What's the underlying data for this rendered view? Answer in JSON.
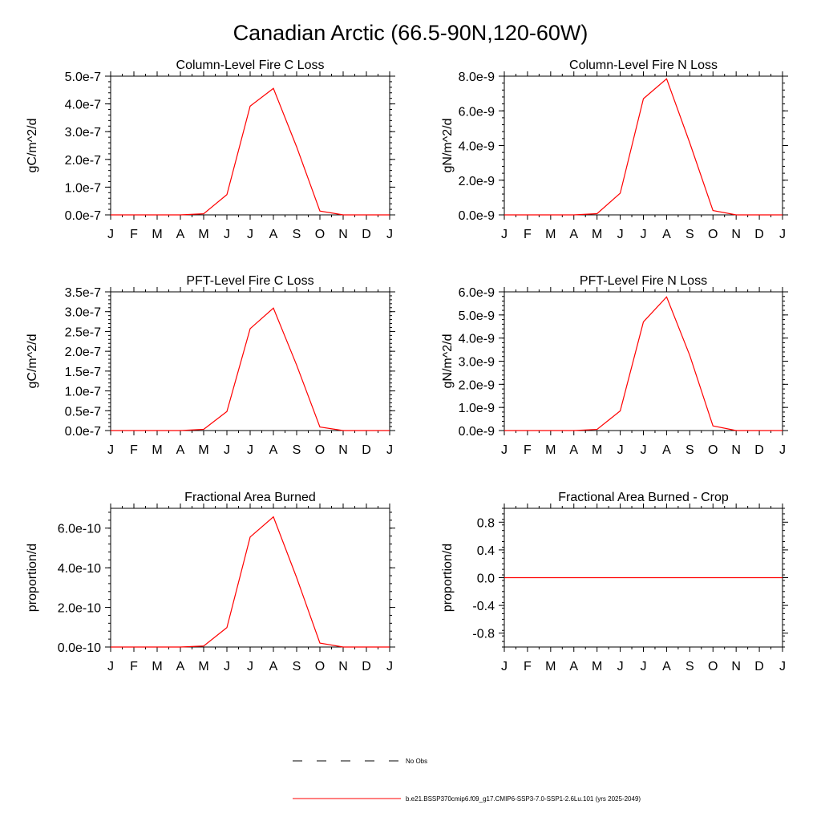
{
  "title": "Canadian Arctic (66.5-90N,120-60W)",
  "colors": {
    "series": "#ff0000",
    "axis": "#000000"
  },
  "legend": {
    "placement": "bottom",
    "entries": [
      {
        "label": "No Obs",
        "style": "dashed",
        "color": "#000000"
      },
      {
        "label": "b.e21.BSSP370cmip6.f09_g17.CMIP6-SSP3-7.0-SSP1-2.6Lu.101 (yrs 2025-2049)",
        "style": "solid",
        "color": "#ff0000"
      }
    ]
  },
  "chart_data": [
    {
      "type": "line",
      "title": "Column-Level Fire C Loss",
      "ylabel": "gC/m^2/d",
      "categories": [
        "J",
        "F",
        "M",
        "A",
        "M",
        "J",
        "J",
        "A",
        "S",
        "O",
        "N",
        "D",
        "J"
      ],
      "ylim": [
        0,
        5e-07
      ],
      "yticks": [
        0,
        1e-07,
        2e-07,
        3e-07,
        4e-07,
        5e-07
      ],
      "ytick_labels": [
        "0.0e-7",
        "1.0e-7",
        "2.0e-7",
        "3.0e-7",
        "4.0e-7",
        "5.0e-7"
      ],
      "series": [
        {
          "values": [
            0,
            0,
            0,
            0,
            4e-09,
            7.3e-08,
            3.92e-07,
            4.56e-07,
            2.45e-07,
            1.4e-08,
            0,
            0,
            0
          ]
        }
      ]
    },
    {
      "type": "line",
      "title": "Column-Level Fire N Loss",
      "ylabel": "gN/m^2/d",
      "categories": [
        "J",
        "F",
        "M",
        "A",
        "M",
        "J",
        "J",
        "A",
        "S",
        "O",
        "N",
        "D",
        "J"
      ],
      "ylim": [
        0,
        8e-09
      ],
      "yticks": [
        0,
        2e-09,
        4e-09,
        6e-09,
        8e-09
      ],
      "ytick_labels": [
        "0.0e-9",
        "2.0e-9",
        "4.0e-9",
        "6.0e-9",
        "8.0e-9"
      ],
      "series": [
        {
          "values": [
            0,
            0,
            0,
            0,
            7e-11,
            1.25e-09,
            6.7e-09,
            7.85e-09,
            4.15e-09,
            2.5e-10,
            0,
            0,
            0
          ]
        }
      ]
    },
    {
      "type": "line",
      "title": "PFT-Level Fire C Loss",
      "ylabel": "gC/m^2/d",
      "categories": [
        "J",
        "F",
        "M",
        "A",
        "M",
        "J",
        "J",
        "A",
        "S",
        "O",
        "N",
        "D",
        "J"
      ],
      "ylim": [
        0,
        3.5e-07
      ],
      "yticks": [
        0,
        5e-08,
        1e-07,
        1.5e-07,
        2e-07,
        2.5e-07,
        3e-07,
        3.5e-07
      ],
      "ytick_labels": [
        "0.0e-7",
        "0.5e-7",
        "1.0e-7",
        "1.5e-7",
        "2.0e-7",
        "2.5e-7",
        "3.0e-7",
        "3.5e-7"
      ],
      "series": [
        {
          "values": [
            0,
            0,
            0,
            0,
            3e-09,
            4.8e-08,
            2.57e-07,
            3.09e-07,
            1.65e-07,
            9e-09,
            0,
            0,
            0
          ]
        }
      ]
    },
    {
      "type": "line",
      "title": "PFT-Level Fire N Loss",
      "ylabel": "gN/m^2/d",
      "categories": [
        "J",
        "F",
        "M",
        "A",
        "M",
        "J",
        "J",
        "A",
        "S",
        "O",
        "N",
        "D",
        "J"
      ],
      "ylim": [
        0,
        6e-09
      ],
      "yticks": [
        0,
        1e-09,
        2e-09,
        3e-09,
        4e-09,
        5e-09,
        6e-09
      ],
      "ytick_labels": [
        "0.0e-9",
        "1.0e-9",
        "2.0e-9",
        "3.0e-9",
        "4.0e-9",
        "5.0e-9",
        "6.0e-9"
      ],
      "series": [
        {
          "values": [
            0,
            0,
            0,
            0,
            5e-11,
            8.5e-10,
            4.7e-09,
            5.78e-09,
            3.25e-09,
            2e-10,
            0,
            0,
            0
          ]
        }
      ]
    },
    {
      "type": "line",
      "title": "Fractional Area Burned",
      "ylabel": "proportion/d",
      "categories": [
        "J",
        "F",
        "M",
        "A",
        "M",
        "J",
        "J",
        "A",
        "S",
        "O",
        "N",
        "D",
        "J"
      ],
      "ylim": [
        0,
        7e-10
      ],
      "yticks": [
        0,
        2e-10,
        4e-10,
        6e-10
      ],
      "ytick_labels": [
        "0.0e-10",
        "2.0e-10",
        "4.0e-10",
        "6.0e-10"
      ],
      "series": [
        {
          "values": [
            0,
            0,
            0,
            0,
            5e-12,
            9.8e-11,
            5.55e-10,
            6.57e-10,
            3.5e-10,
            2e-11,
            0,
            0,
            0
          ]
        }
      ]
    },
    {
      "type": "line",
      "title": "Fractional Area Burned - Crop",
      "ylabel": "proportion/d",
      "categories": [
        "J",
        "F",
        "M",
        "A",
        "M",
        "J",
        "J",
        "A",
        "S",
        "O",
        "N",
        "D",
        "J"
      ],
      "ylim": [
        -1.0,
        1.0
      ],
      "yticks": [
        -0.8,
        -0.4,
        0.0,
        0.4,
        0.8
      ],
      "ytick_labels": [
        "-0.8",
        "-0.4",
        "0.0",
        "0.4",
        "0.8"
      ],
      "series": [
        {
          "values": [
            0,
            0,
            0,
            0,
            0,
            0,
            0,
            0,
            0,
            0,
            0,
            0,
            0
          ]
        }
      ]
    }
  ]
}
